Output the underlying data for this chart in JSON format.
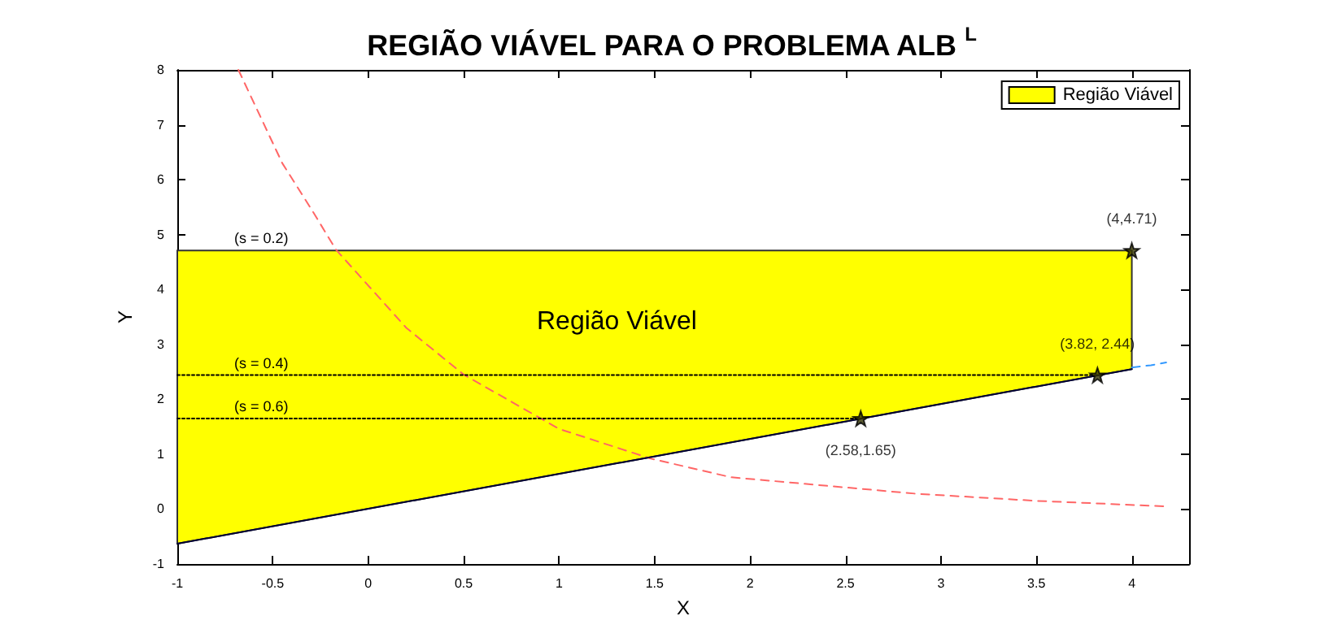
{
  "chart_data": {
    "type": "line",
    "title": "REGIÃO VIÁVEL PARA O PROBLEMA ALB$^{L}$",
    "xlabel": "X",
    "ylabel": "Y",
    "xlim": [
      -1,
      4.3
    ],
    "xticks": [
      -1,
      -0.5,
      0,
      0.5,
      1,
      1.5,
      2,
      2.5,
      3,
      3.5,
      4
    ],
    "ylim": [
      -1,
      8
    ],
    "yticks": [
      -1,
      0,
      1,
      2,
      3,
      4,
      5,
      6,
      7,
      8
    ],
    "grid": false,
    "legend": "top right",
    "series": [
      {
        "type": "area",
        "name": "Região Viável",
        "color": "#ffff00",
        "x": [
          -1,
          4,
          4,
          -1
        ],
        "values": [
          -0.63,
          2.55,
          4.71,
          4.71
        ]
      },
      {
        "color": "#ff6666",
        "line_style": "dashed",
        "marker": "none",
        "x": [
          -0.68,
          -0.45,
          -0.29,
          -0.17,
          0.2,
          0.5,
          1,
          1.48,
          1.9,
          2.87,
          3.5,
          4.18
        ],
        "values": [
          8,
          6.3,
          5.42,
          4.73,
          3.3,
          2.45,
          1.46,
          0.92,
          0.58,
          0.28,
          0.15,
          0.05
        ]
      },
      {
        "color": "#3399ff",
        "line_style": "dashed",
        "marker": "none",
        "x": [
          4,
          4.1,
          4.18
        ],
        "values": [
          2.58,
          2.62,
          2.67
        ]
      },
      {
        "type": "line",
        "color": "#000000",
        "line_style": "dotted",
        "marker": "none",
        "x": [
          -1,
          3.82
        ],
        "values": [
          2.44,
          2.44
        ]
      },
      {
        "type": "line",
        "color": "#000000",
        "line_style": "dotted",
        "marker": "none",
        "x": [
          -1,
          2.58
        ],
        "values": [
          1.65,
          1.65
        ]
      },
      {
        "type": "line",
        "color": "#000033",
        "line_style": "solid",
        "marker": "none",
        "x": [
          -1,
          4
        ],
        "values": [
          -0.63,
          2.55
        ]
      },
      {
        "type": "scatter",
        "color": "#000000",
        "marker": "star",
        "x": [
          4,
          3.82,
          2.58
        ],
        "values": [
          4.71,
          2.44,
          1.65
        ],
        "value_labels": [
          "(4,4.71)",
          "(3.82, 2.44)",
          "(2.58,1.65)"
        ]
      }
    ],
    "annotations": [
      {
        "text": "(s = 0.2)",
        "y": 4.71
      },
      {
        "text": "(s = 0.4)",
        "y": 2.44
      },
      {
        "text": "(s = 0.6)",
        "y": 1.65
      },
      "Região Viável"
    ]
  }
}
